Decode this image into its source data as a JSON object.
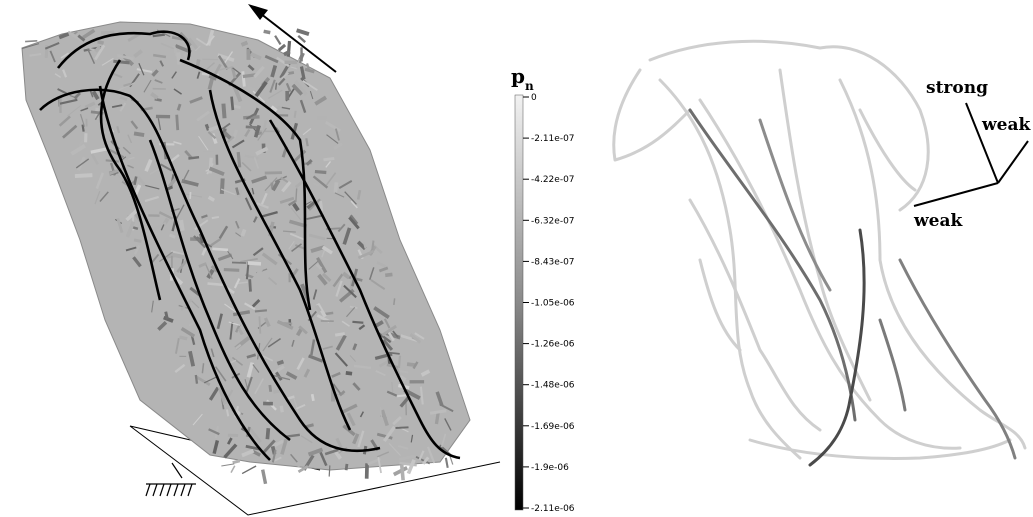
{
  "colorbar": {
    "symbol": "p",
    "subscript": "n",
    "ticks": [
      "0",
      "-2.11e-07",
      "-4.22e-07",
      "-6.32e-07",
      "-8.43e-07",
      "-1.05e-06",
      "-1.26e-06",
      "-1.48e-06",
      "-1.69e-06",
      "-1.9e-06",
      "-2.11e-06"
    ]
  },
  "axes_labels": {
    "strong": "strong",
    "weak_upper": "weak",
    "weak_lower": "weak"
  }
}
